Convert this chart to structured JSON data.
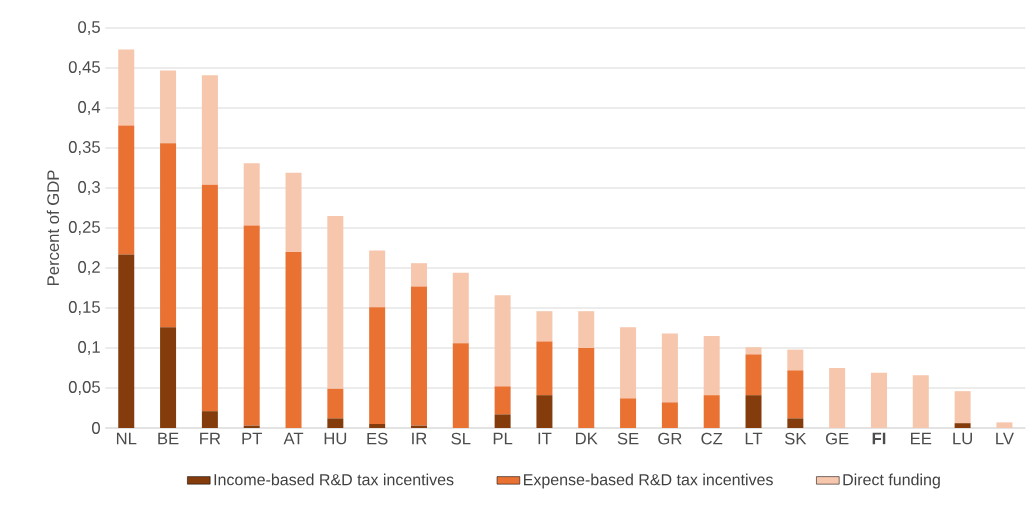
{
  "chart_data": {
    "type": "bar",
    "stacked": true,
    "ylabel": "Percent of GDP",
    "categories": [
      "NL",
      "BE",
      "FR",
      "PT",
      "AT",
      "HU",
      "ES",
      "IR",
      "SL",
      "PL",
      "IT",
      "DK",
      "SE",
      "GR",
      "CZ",
      "LT",
      "SK",
      "GE",
      "**FI**",
      "EE",
      "LU",
      "LV"
    ],
    "series": [
      {
        "name": "Income-based R&D tax incentives",
        "color": "#843c0c",
        "values": [
          0.217,
          0.126,
          0.021,
          0.003,
          0,
          0.012,
          0.005,
          0.003,
          0,
          0.017,
          0.041,
          0,
          0,
          0,
          0,
          0.041,
          0.012,
          0,
          0,
          0,
          0.006,
          0
        ]
      },
      {
        "name": "Expense-based R&D tax incentives",
        "color": "#e97132",
        "values": [
          0.161,
          0.23,
          0.283,
          0.25,
          0.22,
          0.037,
          0.146,
          0.174,
          0.106,
          0.035,
          0.067,
          0.1,
          0.037,
          0.032,
          0.041,
          0.051,
          0.06,
          0,
          0,
          0,
          0,
          0
        ]
      },
      {
        "name": "Direct funding",
        "color": "#f6c6ad",
        "values": [
          0.095,
          0.091,
          0.137,
          0.078,
          0.099,
          0.216,
          0.071,
          0.029,
          0.088,
          0.114,
          0.038,
          0.046,
          0.089,
          0.086,
          0.074,
          0.009,
          0.026,
          0.075,
          0.069,
          0.066,
          0.04,
          0.007
        ]
      }
    ],
    "ylim": [
      0,
      0.5
    ],
    "yticks": [
      0,
      {
        "value": 0.05,
        "label": "0,05"
      },
      {
        "value": 0.1,
        "label": "0,1"
      },
      {
        "value": 0.15,
        "label": "0,15"
      },
      {
        "value": 0.2,
        "label": "0,2"
      },
      {
        "value": 0.25,
        "label": "0,25"
      },
      {
        "value": 0.3,
        "label": "0,3"
      },
      {
        "value": 0.35,
        "label": "0,35"
      },
      {
        "value": 0.4,
        "label": "0,4"
      },
      {
        "value": 0.45,
        "label": "0,45"
      },
      {
        "value": 0.5,
        "label": "0,5"
      }
    ],
    "grid": "y",
    "legend": "bottom"
  }
}
